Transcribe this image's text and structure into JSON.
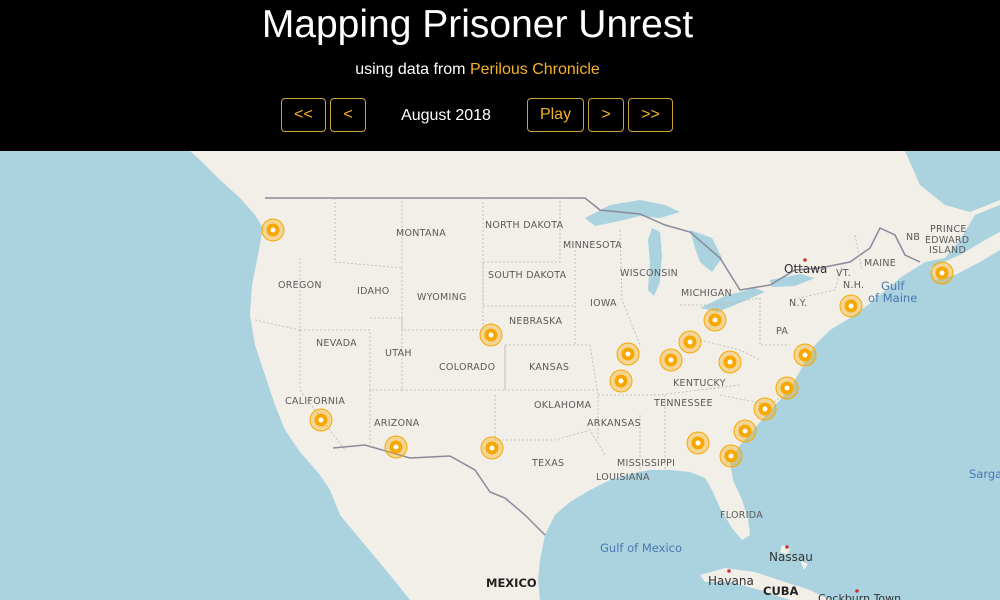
{
  "header": {
    "title": "Mapping Prisoner Unrest",
    "subtitle_prefix": "using data from",
    "subtitle_link": "Perilous Chronicle",
    "date": "August 2018",
    "buttons": {
      "first": "<<",
      "prev": "<",
      "play": "Play",
      "next": ">",
      "last": ">>"
    }
  },
  "colors": {
    "header_bg": "#000000",
    "accent": "#f5b324",
    "water": "#aad3df",
    "land": "#f2efe9",
    "marker": "#f7a800"
  },
  "map": {
    "labels": {
      "states": [
        "MONTANA",
        "NORTH DAKOTA",
        "MINNESOTA",
        "SOUTH DAKOTA",
        "WISCONSIN",
        "MICHIGAN",
        "IOWA",
        "NEBRASKA",
        "WYOMING",
        "IDAHO",
        "OREGON",
        "NEVADA",
        "UTAH",
        "COLORADO",
        "KANSAS",
        "CALIFORNIA",
        "ARIZONA",
        "OKLAHOMA",
        "ARKANSAS",
        "TENNESSEE",
        "KENTUCKY",
        "TEXAS",
        "MISSISSIPPI",
        "LOUISIANA",
        "FLORIDA",
        "PA",
        "N.Y.",
        "VT.",
        "N.H.",
        "MAINE",
        "NB"
      ],
      "prince_edward_island": [
        "PRINCE",
        "EDWARD",
        "ISLAND"
      ],
      "cities": [
        "Ottawa",
        "Nassau",
        "Havana",
        "Cockburn Town"
      ],
      "water": [
        "Gulf",
        "of Maine",
        "Gulf of Mexico",
        "Sarga"
      ],
      "countries": [
        "MEXICO",
        "CUBA"
      ]
    },
    "incident_count": 20
  }
}
